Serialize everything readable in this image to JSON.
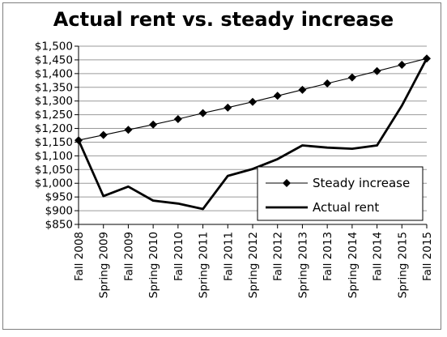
{
  "chart_data": {
    "type": "line",
    "title": "Actual rent vs. steady increase",
    "xlabel": "",
    "ylabel": "",
    "categories": [
      "Fall 2008",
      "Spring 2009",
      "Fall 2009",
      "Spring 2010",
      "Fall 2010",
      "Spring 2011",
      "Fall 2011",
      "Spring 2012",
      "Fall 2012",
      "Spring 2013",
      "Fall 2013",
      "Spring 2014",
      "Fall 2014",
      "Spring 2015",
      "Fall 2015"
    ],
    "ylim": [
      850,
      1500
    ],
    "yticks": [
      850,
      900,
      950,
      1000,
      1050,
      1100,
      1150,
      1200,
      1250,
      1300,
      1350,
      1400,
      1450,
      1500
    ],
    "ytick_labels": [
      "$850",
      "$900",
      "$950",
      "$1,000",
      "$1,050",
      "$1,100",
      "$1,150",
      "$1,200",
      "$1,250",
      "$1,300",
      "$1,350",
      "$1,400",
      "$1,450",
      "$1,500"
    ],
    "grid": "horizontal",
    "legend_position": "bottom-right",
    "series": [
      {
        "name": "Steady increase",
        "marker": "diamond",
        "color": "#000000",
        "line_width": "thin",
        "values": [
          1157,
          1176,
          1195,
          1214,
          1234,
          1256,
          1276,
          1297,
          1319,
          1341,
          1364,
          1386,
          1409,
          1432,
          1455
        ]
      },
      {
        "name": "Actual rent",
        "marker": "none",
        "color": "#000000",
        "line_width": "thick",
        "values": [
          1157,
          953,
          988,
          937,
          926,
          906,
          1027,
          1052,
          1088,
          1138,
          1130,
          1126,
          1138,
          1283,
          1455
        ]
      }
    ]
  }
}
